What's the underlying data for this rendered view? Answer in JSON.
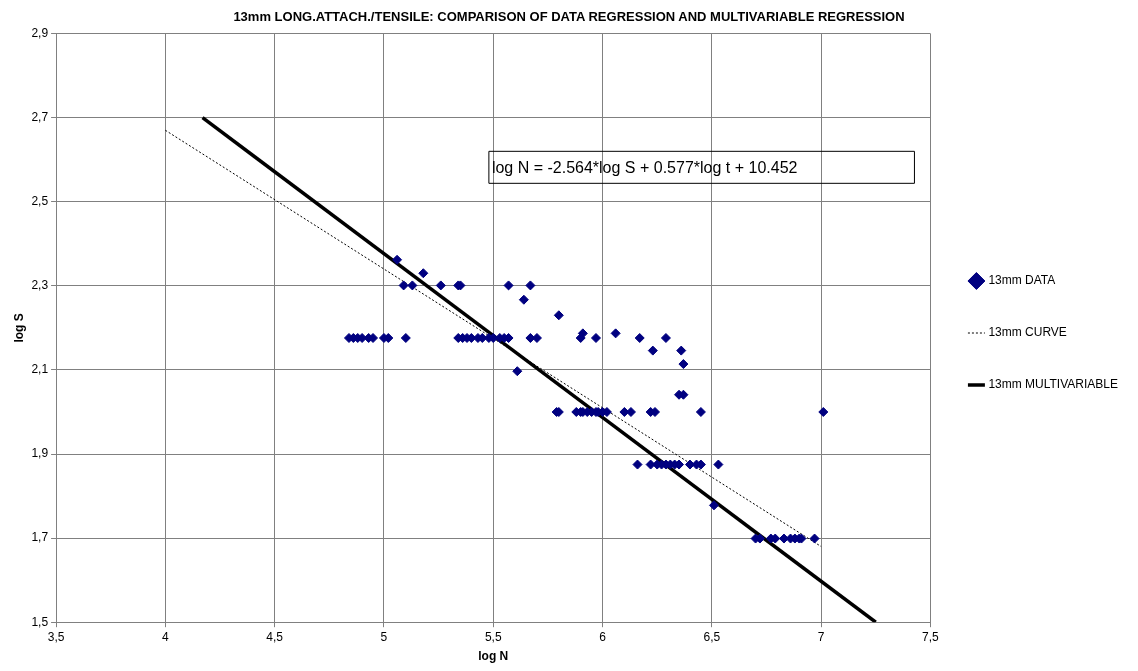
{
  "chart_data": {
    "type": "scatter",
    "title": "13mm LONG.ATTACH./TENSILE: COMPARISON OF DATA REGRESSION AND MULTIVARIABLE REGRESSION",
    "xlabel": "log N",
    "ylabel": "log S",
    "annotations": [
      "log N = -2.564*log S + 0.577*log t + 10.452"
    ],
    "xlim": [
      3.5,
      7.5
    ],
    "xticks": [
      {
        "value": 3.5,
        "label": "3,5"
      },
      4,
      {
        "value": 4.5,
        "label": "4,5"
      },
      5,
      {
        "value": 5.5,
        "label": "5,5"
      },
      6,
      {
        "value": 6.5,
        "label": "6,5"
      },
      7,
      {
        "value": 7.5,
        "label": "7,5"
      }
    ],
    "ylim": [
      1.5,
      2.9
    ],
    "yticks": [
      {
        "value": 1.5,
        "label": "1,5"
      },
      {
        "value": 1.7,
        "label": "1,7"
      },
      {
        "value": 1.9,
        "label": "1,9"
      },
      {
        "value": 2.1,
        "label": "2,1"
      },
      {
        "value": 2.3,
        "label": "2,3"
      },
      {
        "value": 2.5,
        "label": "2,5"
      },
      {
        "value": 2.7,
        "label": "2,7"
      },
      {
        "value": 2.9,
        "label": "2,9"
      }
    ],
    "grid": true,
    "legend": "right",
    "marker": "diamond",
    "series": [
      {
        "name": "13mm DATA",
        "color": "#000080",
        "x": [
          4.84,
          4.86,
          4.88,
          4.9,
          4.93,
          4.95,
          5.0,
          5.02,
          5.1,
          5.34,
          5.36,
          5.38,
          5.4,
          5.43,
          5.45,
          5.48,
          5.5,
          5.53,
          5.55,
          5.57,
          5.67,
          5.7,
          5.9,
          5.97,
          6.17,
          6.29,
          5.09,
          5.13,
          5.26,
          5.34,
          5.35,
          5.57,
          5.67,
          5.06,
          5.18,
          5.64,
          5.61,
          5.8,
          5.91,
          6.06,
          6.23,
          6.36,
          6.37,
          6.35,
          6.37,
          5.79,
          5.8,
          5.88,
          5.9,
          5.91,
          5.93,
          5.95,
          5.97,
          5.98,
          6.0,
          6.02,
          6.1,
          6.13,
          6.22,
          6.24,
          6.45,
          7.01,
          6.16,
          6.22,
          6.25,
          6.27,
          6.29,
          6.31,
          6.33,
          6.35,
          6.4,
          6.43,
          6.45,
          6.53,
          6.51,
          6.7,
          6.72,
          6.77,
          6.79,
          6.83,
          6.86,
          6.88,
          6.9,
          6.91,
          6.97
        ],
        "values": [
          2.176,
          2.176,
          2.176,
          2.176,
          2.176,
          2.176,
          2.176,
          2.176,
          2.176,
          2.176,
          2.176,
          2.176,
          2.176,
          2.176,
          2.176,
          2.176,
          2.176,
          2.176,
          2.176,
          2.176,
          2.176,
          2.176,
          2.176,
          2.176,
          2.176,
          2.176,
          2.301,
          2.301,
          2.301,
          2.301,
          2.301,
          2.301,
          2.301,
          2.362,
          2.33,
          2.267,
          2.097,
          2.23,
          2.187,
          2.187,
          2.146,
          2.146,
          2.114,
          2.041,
          2.041,
          2.0,
          2.0,
          2.0,
          2.0,
          2.0,
          2.0,
          2.0,
          2.0,
          2.0,
          2.0,
          2.0,
          2.0,
          2.0,
          2.0,
          2.0,
          2.0,
          2.0,
          1.875,
          1.875,
          1.875,
          1.875,
          1.875,
          1.875,
          1.875,
          1.875,
          1.875,
          1.875,
          1.875,
          1.875,
          1.778,
          1.699,
          1.699,
          1.699,
          1.699,
          1.699,
          1.699,
          1.699,
          1.699,
          1.699,
          1.699
        ]
      },
      {
        "name": "13mm CURVE",
        "color": "#000000",
        "type": "line",
        "line_style": "dotted",
        "marker": "none",
        "x": [
          4,
          7
        ],
        "values": [
          2.67,
          1.68
        ]
      },
      {
        "name": "13mm MULTIVARIABLE",
        "color": "#000000",
        "type": "line",
        "line_style": "solid",
        "marker": "none",
        "x": [
          4.17,
          7.25
        ],
        "values": [
          2.7,
          1.5
        ]
      }
    ]
  }
}
